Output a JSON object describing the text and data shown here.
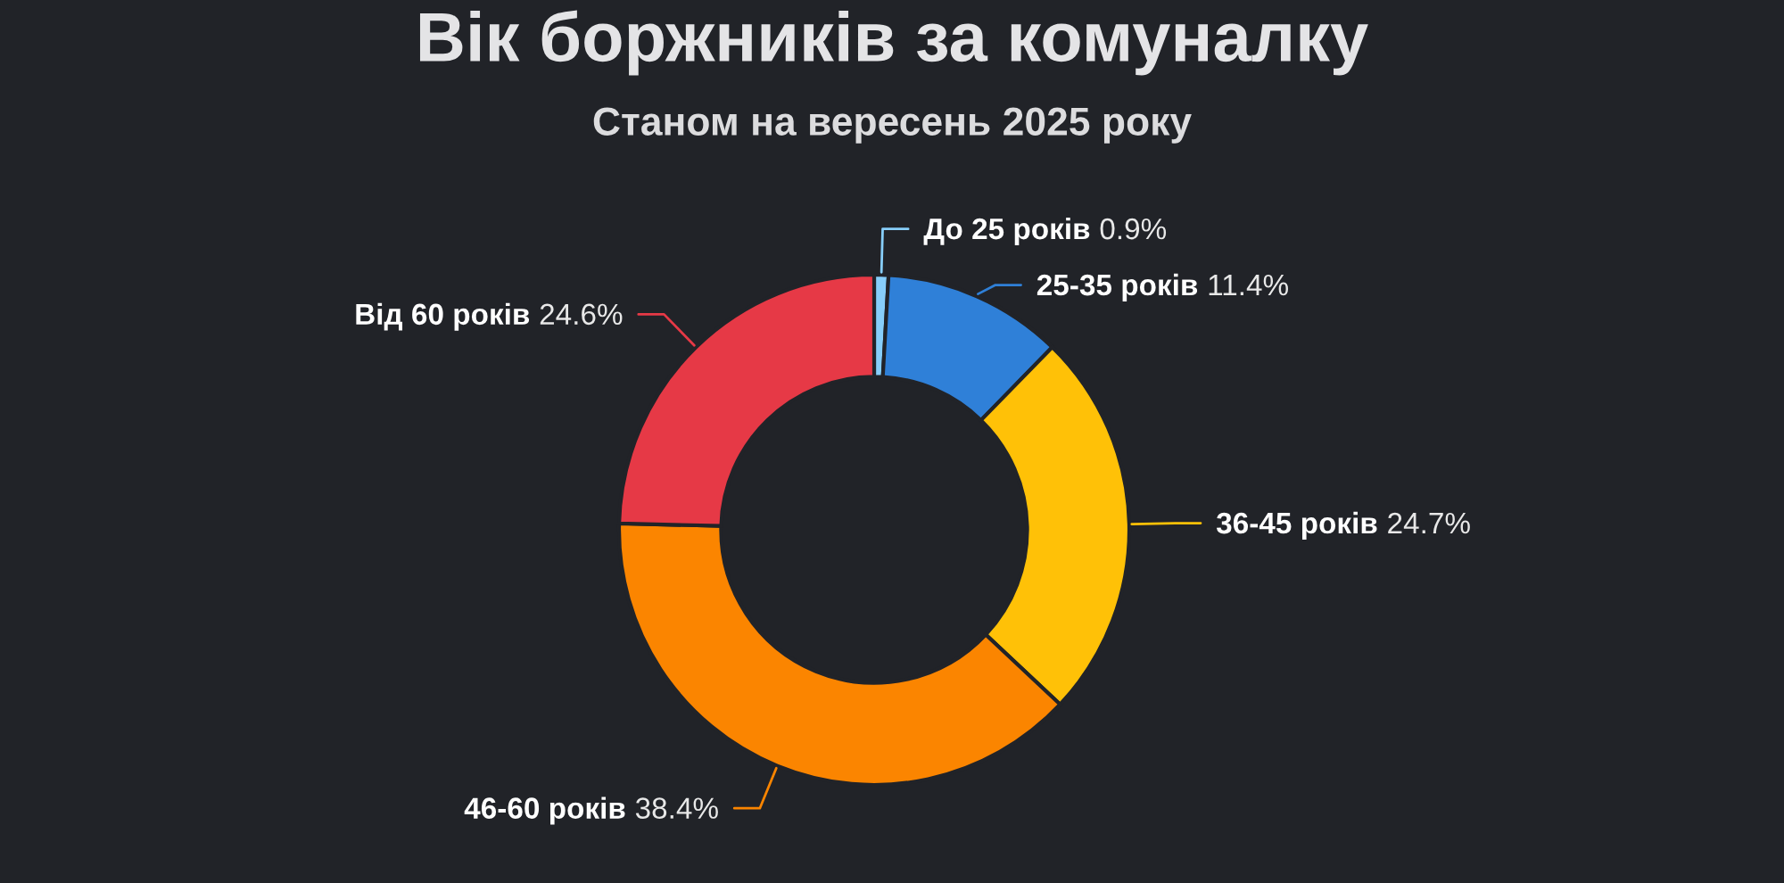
{
  "chart_data": {
    "type": "donut",
    "title": "Вік боржників за комуналку",
    "subtitle": "Станом на вересень 2025 року",
    "categories": [
      "До 25 років",
      "25-35 років",
      "36-45 років",
      "46-60 років",
      "Від 60 років"
    ],
    "values": [
      0.9,
      11.4,
      24.7,
      38.4,
      24.6
    ],
    "colors": [
      "#87cefa",
      "#2f80d8",
      "#ffc107",
      "#fb8500",
      "#e63946"
    ],
    "value_labels": [
      "0.9%",
      "11.4%",
      "24.7%",
      "38.4%",
      "24.6%"
    ]
  }
}
